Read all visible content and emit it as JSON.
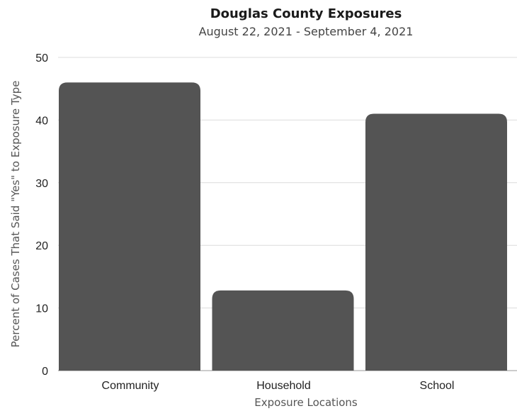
{
  "chart_data": {
    "type": "bar",
    "title": "Douglas County Exposures",
    "subtitle": "August 22, 2021 - September 4, 2021",
    "xlabel": "Exposure Locations",
    "ylabel": "Percent of Cases That Said \"Yes\" to Exposure Type",
    "categories": [
      "Community",
      "Household",
      "School"
    ],
    "values": [
      46,
      12.8,
      41
    ],
    "ylim": [
      0,
      50
    ],
    "yticks": [
      0,
      10,
      20,
      30,
      40,
      50
    ],
    "grid": true,
    "legend": "none",
    "bar_color": "#545454"
  }
}
